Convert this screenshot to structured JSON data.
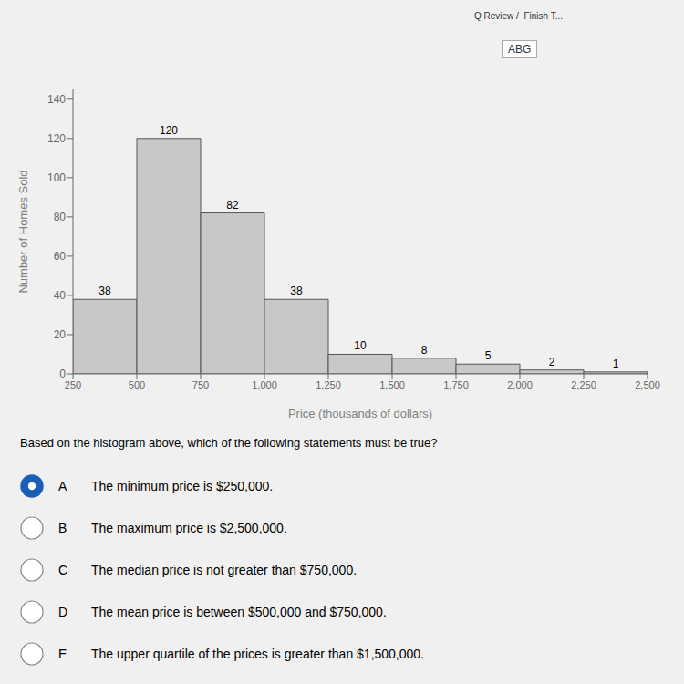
{
  "chart_data": {
    "type": "histogram",
    "bins": [
      250,
      500,
      750,
      1000,
      1250,
      1500,
      1750,
      2000,
      2250,
      2500
    ],
    "values": [
      38,
      120,
      82,
      38,
      10,
      8,
      5,
      2,
      1
    ],
    "color": "#c8c8c8",
    "xlabel": "Price (thousands of dollars)",
    "ylabel": "Number of Homes Sold",
    "xlim": [
      250,
      2500
    ],
    "xticks": [
      250,
      500,
      750,
      {
        "value": 1000,
        "label": "1,000"
      },
      {
        "value": 1250,
        "label": "1,250"
      },
      {
        "value": 1500,
        "label": "1,500"
      },
      {
        "value": 1750,
        "label": "1,750"
      },
      {
        "value": 2000,
        "label": "2,000"
      },
      {
        "value": 2250,
        "label": "2,250"
      },
      {
        "value": 2500,
        "label": "2,500"
      }
    ],
    "ylim": [
      0,
      145
    ],
    "yticks": [
      0,
      20,
      40,
      60,
      80,
      100,
      120,
      140
    ],
    "data_labels": true,
    "grid": false,
    "annotations": [
      "Q Review /  Finish T...",
      "ABG",
      "Based on the histogram above, which of the following statements must be true?"
    ],
    "options": [
      {
        "label": "A",
        "text": "The minimum price is $250,000.",
        "selected": true
      },
      {
        "label": "B",
        "text": "The maximum price is $2,500,000.",
        "selected": false
      },
      {
        "label": "C",
        "text": "The median price is not greater than $750,000.",
        "selected": false
      },
      {
        "label": "D",
        "text": "The mean price is between $500,000 and $750,000.",
        "selected": false
      },
      {
        "label": "E",
        "text": "The upper quartile of the prices is greater than $1,500,000.",
        "selected": false
      }
    ],
    "selected_color": "#1a5fb4"
  }
}
